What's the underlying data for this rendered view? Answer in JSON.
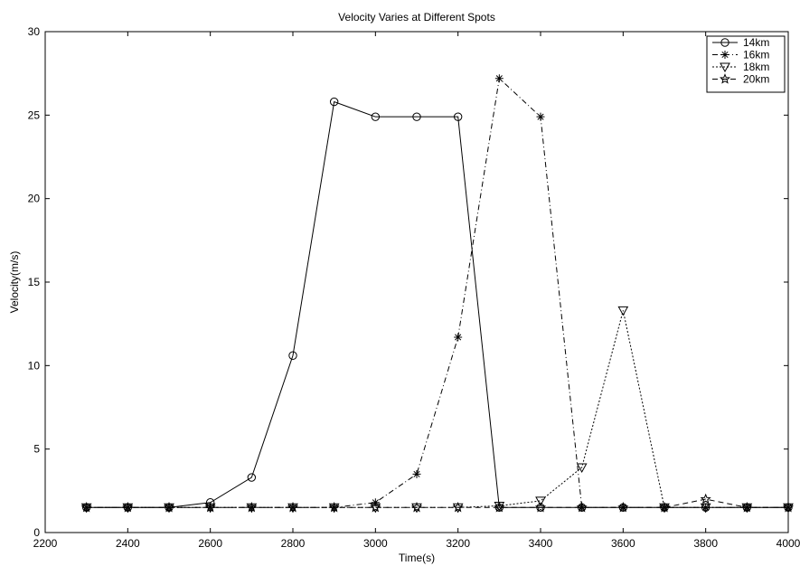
{
  "chart_data": {
    "type": "line",
    "title": "Velocity Varies at Different Spots",
    "xlabel": "Time(s)",
    "ylabel": "Velocity(m/s)",
    "xlim": [
      2200,
      4000
    ],
    "ylim": [
      0,
      30
    ],
    "xticks": [
      2200,
      2400,
      2600,
      2800,
      3000,
      3200,
      3400,
      3600,
      3800,
      4000
    ],
    "yticks": [
      0,
      5,
      10,
      15,
      20,
      25,
      30
    ],
    "grid": false,
    "legend_position": "top-right",
    "x": [
      2300,
      2400,
      2500,
      2600,
      2700,
      2800,
      2900,
      3000,
      3100,
      3200,
      3300,
      3400,
      3500,
      3600,
      3700,
      3800,
      3900,
      4000
    ],
    "series": [
      {
        "name": "14km",
        "marker": "circle",
        "line": "solid",
        "values": [
          1.5,
          1.5,
          1.5,
          1.8,
          3.3,
          10.6,
          25.8,
          24.9,
          24.9,
          24.9,
          1.5,
          1.5,
          1.5,
          1.5,
          1.5,
          1.5,
          1.5,
          1.5
        ]
      },
      {
        "name": "16km",
        "marker": "star",
        "line": "dashdot",
        "values": [
          1.5,
          1.5,
          1.5,
          1.5,
          1.5,
          1.5,
          1.5,
          1.8,
          3.5,
          11.7,
          27.2,
          24.9,
          1.5,
          1.5,
          1.5,
          1.5,
          1.5,
          1.5
        ]
      },
      {
        "name": "18km",
        "marker": "triangle-down",
        "line": "dotted",
        "values": [
          1.5,
          1.5,
          1.5,
          1.5,
          1.5,
          1.5,
          1.5,
          1.5,
          1.5,
          1.5,
          1.6,
          1.9,
          3.9,
          13.3,
          1.5,
          1.5,
          1.5,
          1.5
        ]
      },
      {
        "name": "20km",
        "marker": "pentagram",
        "line": "dashed",
        "values": [
          1.5,
          1.5,
          1.5,
          1.5,
          1.5,
          1.5,
          1.5,
          1.5,
          1.5,
          1.5,
          1.5,
          1.5,
          1.5,
          1.5,
          1.5,
          2.0,
          1.5,
          1.5
        ]
      }
    ]
  }
}
